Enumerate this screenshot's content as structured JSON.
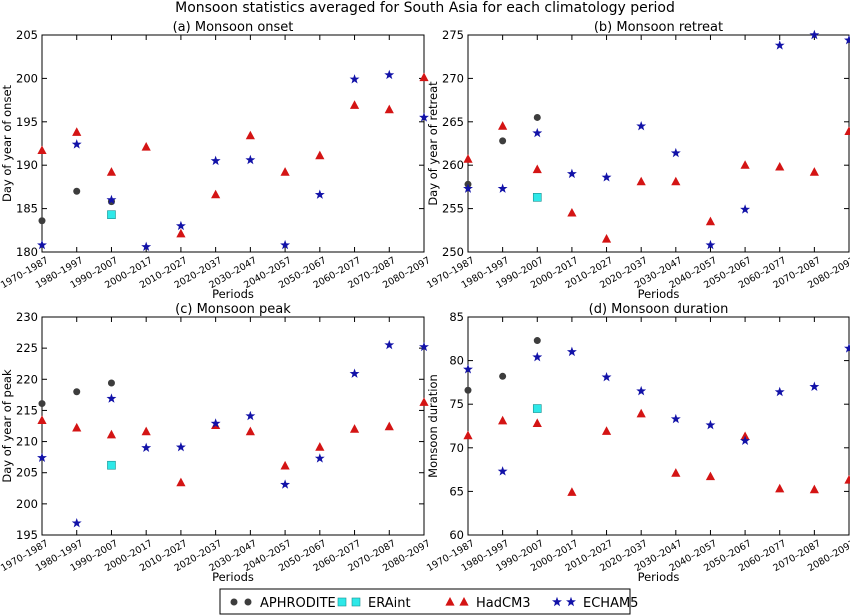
{
  "figure": {
    "title": "Monsoon statistics averaged for South Asia for each climatology period"
  },
  "periods": [
    "1970–1987",
    "1980–1997",
    "1990–2007",
    "2000–2017",
    "2010–2027",
    "2020–2037",
    "2030–2047",
    "2040–2057",
    "2050–2067",
    "2060–2077",
    "2070–2087",
    "2080–2097"
  ],
  "legend": {
    "placement": "bottom-center",
    "entries": [
      {
        "name": "APHRODITE",
        "marker": "circle",
        "color": "#3d3d3d"
      },
      {
        "name": "ERAint",
        "marker": "square",
        "color": "#2ee8e8"
      },
      {
        "name": "HadCM3",
        "marker": "triangle",
        "color": "#d41414"
      },
      {
        "name": "ECHAM5",
        "marker": "star",
        "color": "#1212a8"
      }
    ]
  },
  "chart_data": [
    {
      "type": "scatter",
      "title": "(a) Monsoon onset",
      "xlabel": "Periods",
      "ylabel": "Day of year of onset",
      "ylim": [
        180,
        205
      ],
      "yticks": [
        180,
        185,
        190,
        195,
        200,
        205
      ],
      "grid": false,
      "series": [
        {
          "name": "APHRODITE",
          "values": [
            183.6,
            187.0,
            185.8,
            null,
            null,
            null,
            null,
            null,
            null,
            null,
            null,
            null
          ]
        },
        {
          "name": "ERAint",
          "values": [
            null,
            null,
            184.3,
            null,
            null,
            null,
            null,
            null,
            null,
            null,
            null,
            null
          ]
        },
        {
          "name": "HadCM3",
          "values": [
            191.7,
            193.8,
            189.2,
            192.1,
            182.1,
            186.6,
            193.4,
            189.2,
            191.1,
            196.9,
            196.4,
            200.1
          ]
        },
        {
          "name": "ECHAM5",
          "values": [
            180.8,
            192.4,
            186.0,
            180.6,
            183.0,
            190.5,
            190.6,
            180.8,
            186.6,
            199.9,
            200.4,
            195.5
          ]
        }
      ]
    },
    {
      "type": "scatter",
      "title": "(b) Monsoon retreat",
      "xlabel": "Periods",
      "ylabel": "Day of year of retreat",
      "ylim": [
        250,
        275
      ],
      "yticks": [
        250,
        255,
        260,
        265,
        270,
        275
      ],
      "grid": false,
      "series": [
        {
          "name": "APHRODITE",
          "values": [
            257.8,
            262.8,
            265.5,
            null,
            null,
            null,
            null,
            null,
            null,
            null,
            null,
            null
          ]
        },
        {
          "name": "ERAint",
          "values": [
            null,
            null,
            256.3,
            null,
            null,
            null,
            null,
            null,
            null,
            null,
            null,
            null
          ]
        },
        {
          "name": "HadCM3",
          "values": [
            260.7,
            264.5,
            259.5,
            254.5,
            251.5,
            258.1,
            258.1,
            253.5,
            260.0,
            259.8,
            259.2,
            263.9
          ]
        },
        {
          "name": "ECHAM5",
          "values": [
            257.3,
            257.3,
            263.7,
            259.0,
            258.6,
            264.5,
            261.4,
            250.8,
            254.9,
            273.8,
            275.0,
            274.4
          ]
        }
      ]
    },
    {
      "type": "scatter",
      "title": "(c) Monsoon peak",
      "xlabel": "Periods",
      "ylabel": "Day of year of peak",
      "ylim": [
        195,
        230
      ],
      "yticks": [
        195,
        200,
        205,
        210,
        215,
        220,
        225,
        230
      ],
      "grid": false,
      "series": [
        {
          "name": "APHRODITE",
          "values": [
            216.1,
            218.0,
            219.4,
            null,
            null,
            null,
            null,
            null,
            null,
            null,
            null,
            null
          ]
        },
        {
          "name": "ERAint",
          "values": [
            null,
            null,
            206.2,
            null,
            null,
            null,
            null,
            null,
            null,
            null,
            null,
            null
          ]
        },
        {
          "name": "HadCM3",
          "values": [
            213.4,
            212.2,
            211.1,
            211.6,
            203.4,
            212.6,
            211.6,
            206.1,
            209.1,
            212.0,
            212.4,
            216.3
          ]
        },
        {
          "name": "ECHAM5",
          "values": [
            207.4,
            196.9,
            216.9,
            209.0,
            209.1,
            212.9,
            214.1,
            203.1,
            207.3,
            220.9,
            225.5,
            225.2
          ]
        }
      ]
    },
    {
      "type": "scatter",
      "title": "(d) Monsoon duration",
      "xlabel": "Periods",
      "ylabel": "Monsoon duration",
      "ylim": [
        60,
        85
      ],
      "yticks": [
        60,
        65,
        70,
        75,
        80,
        85
      ],
      "grid": false,
      "series": [
        {
          "name": "APHRODITE",
          "values": [
            76.6,
            78.2,
            82.3,
            null,
            null,
            null,
            null,
            null,
            null,
            null,
            null,
            null
          ]
        },
        {
          "name": "ERAint",
          "values": [
            null,
            null,
            74.5,
            null,
            null,
            null,
            null,
            null,
            null,
            null,
            null,
            null
          ]
        },
        {
          "name": "HadCM3",
          "values": [
            71.4,
            73.1,
            72.8,
            64.9,
            71.9,
            73.9,
            67.1,
            66.7,
            71.3,
            65.3,
            65.2,
            66.3
          ]
        },
        {
          "name": "ECHAM5",
          "values": [
            79.0,
            67.3,
            80.4,
            81.0,
            78.1,
            76.5,
            73.3,
            72.6,
            70.8,
            76.4,
            77.0,
            81.4
          ]
        }
      ]
    }
  ]
}
